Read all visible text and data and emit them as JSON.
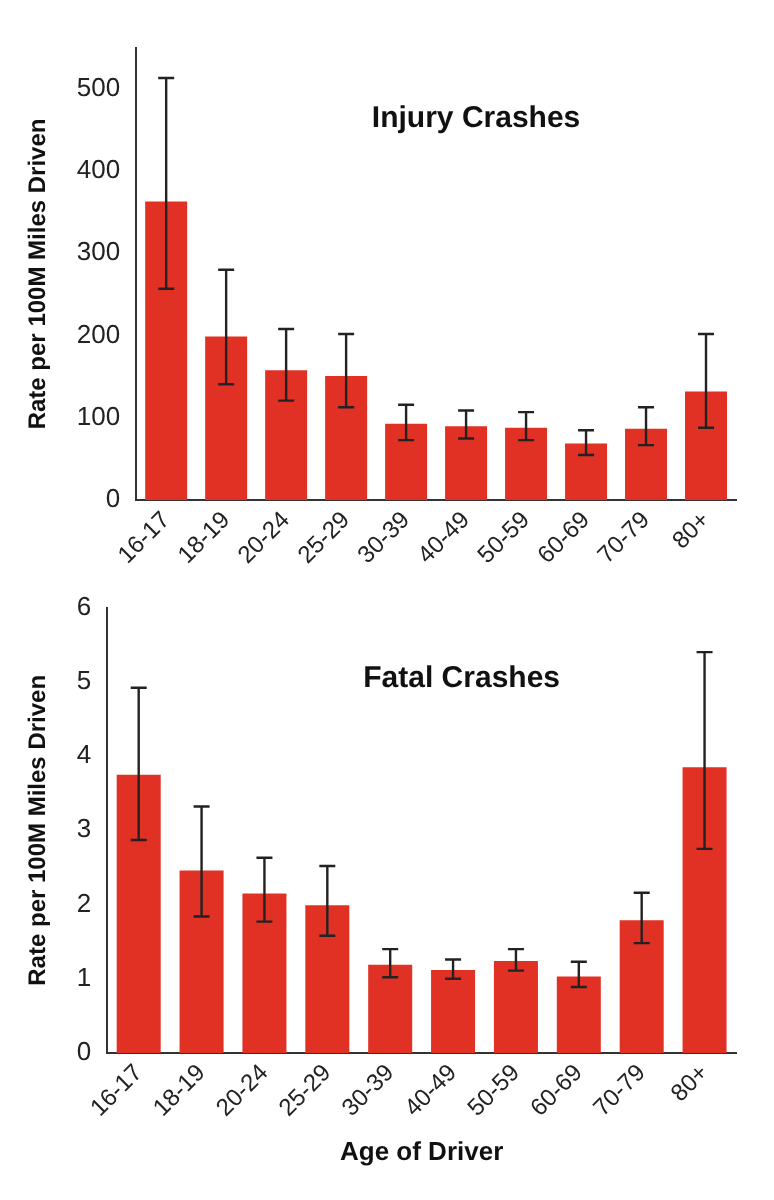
{
  "chart_data": [
    {
      "type": "bar",
      "title": "Injury Crashes",
      "ylabel": "Rate per 100M Miles Driven",
      "categories": [
        "16-17",
        "18-19",
        "20-24",
        "25-29",
        "30-39",
        "40-49",
        "50-59",
        "60-69",
        "70-79",
        "80+"
      ],
      "values": [
        363,
        199,
        158,
        151,
        93,
        90,
        88,
        69,
        87,
        132
      ],
      "errors": [
        [
          257,
          513
        ],
        [
          141,
          280
        ],
        [
          121,
          208
        ],
        [
          113,
          202
        ],
        [
          73,
          116
        ],
        [
          75,
          109
        ],
        [
          73,
          107
        ],
        [
          55,
          85
        ],
        [
          67,
          113
        ],
        [
          88,
          202
        ]
      ],
      "color": "#e03124",
      "ylim": [
        0,
        550
      ],
      "yticks": [
        0,
        100,
        200,
        300,
        400,
        500
      ],
      "grid": false,
      "legend": false
    },
    {
      "type": "bar",
      "title": "Fatal Crashes",
      "ylabel": "Rate per 100M Miles Driven",
      "xlabel": "Age of Driver",
      "categories": [
        "16-17",
        "18-19",
        "20-24",
        "25-29",
        "30-39",
        "40-49",
        "50-59",
        "60-69",
        "70-79",
        "80+"
      ],
      "values": [
        3.75,
        2.46,
        2.15,
        1.99,
        1.19,
        1.12,
        1.24,
        1.03,
        1.79,
        3.85
      ],
      "errors": [
        [
          2.87,
          4.92
        ],
        [
          1.84,
          3.32
        ],
        [
          1.77,
          2.63
        ],
        [
          1.58,
          2.52
        ],
        [
          1.02,
          1.4
        ],
        [
          1.0,
          1.26
        ],
        [
          1.11,
          1.4
        ],
        [
          0.89,
          1.23
        ],
        [
          1.48,
          2.16
        ],
        [
          2.75,
          5.4
        ]
      ],
      "color": "#e03124",
      "ylim": [
        0,
        6
      ],
      "yticks": [
        0,
        1,
        2,
        3,
        4,
        5,
        6
      ],
      "grid": false,
      "legend": false
    }
  ]
}
